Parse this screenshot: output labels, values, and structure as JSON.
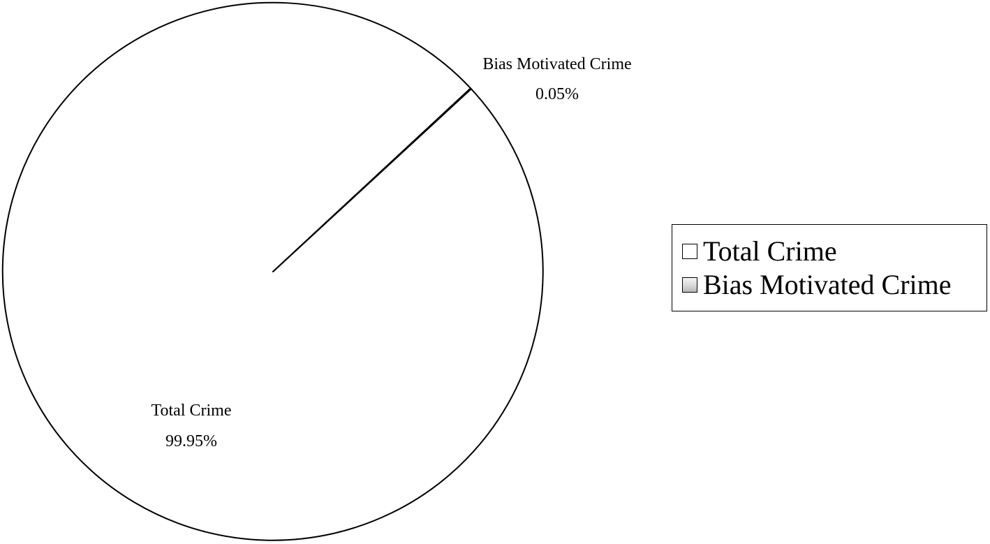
{
  "chart_data": {
    "type": "pie",
    "title": "",
    "slices": [
      {
        "name": "Total Crime",
        "value": 99.95,
        "label_text": "Total Crime",
        "value_text": "99.95%",
        "fill": "#ffffff"
      },
      {
        "name": "Bias Motivated Crime",
        "value": 0.05,
        "label_text": "Bias Motivated Crime",
        "value_text": "0.05%",
        "fill": "#d8d8d8"
      }
    ],
    "legend": {
      "position": "right",
      "items": [
        "Total Crime",
        "Bias Motivated Crime"
      ]
    },
    "outline_color": "#000000"
  }
}
